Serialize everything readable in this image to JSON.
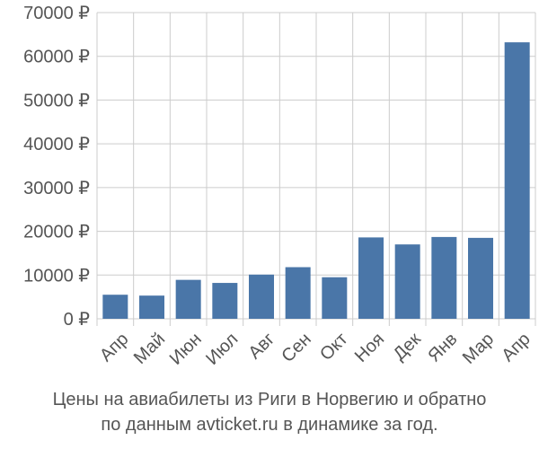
{
  "chart_data": {
    "type": "bar",
    "categories": [
      "Апр",
      "Май",
      "Июн",
      "Июл",
      "Авг",
      "Сен",
      "Окт",
      "Ноя",
      "Дек",
      "Янв",
      "Мар",
      "Апр"
    ],
    "values": [
      5500,
      5300,
      8900,
      8200,
      10100,
      11800,
      9500,
      18600,
      17000,
      18700,
      18500,
      63200
    ],
    "ylim": [
      0,
      70000
    ],
    "yticks": [
      0,
      10000,
      20000,
      30000,
      40000,
      50000,
      60000,
      70000
    ],
    "ytick_labels": [
      "0 ₽",
      "10000 ₽",
      "20000 ₽",
      "30000 ₽",
      "40000 ₽",
      "50000 ₽",
      "60000 ₽",
      "70000 ₽"
    ],
    "grid": true,
    "bar_color": "#4a76a8",
    "grid_color": "#cccccc"
  },
  "caption": {
    "line1": "Цены на авиабилеты из Риги в Норвегию и обратно",
    "line2": "по данным avticket.ru в динамике за год."
  }
}
